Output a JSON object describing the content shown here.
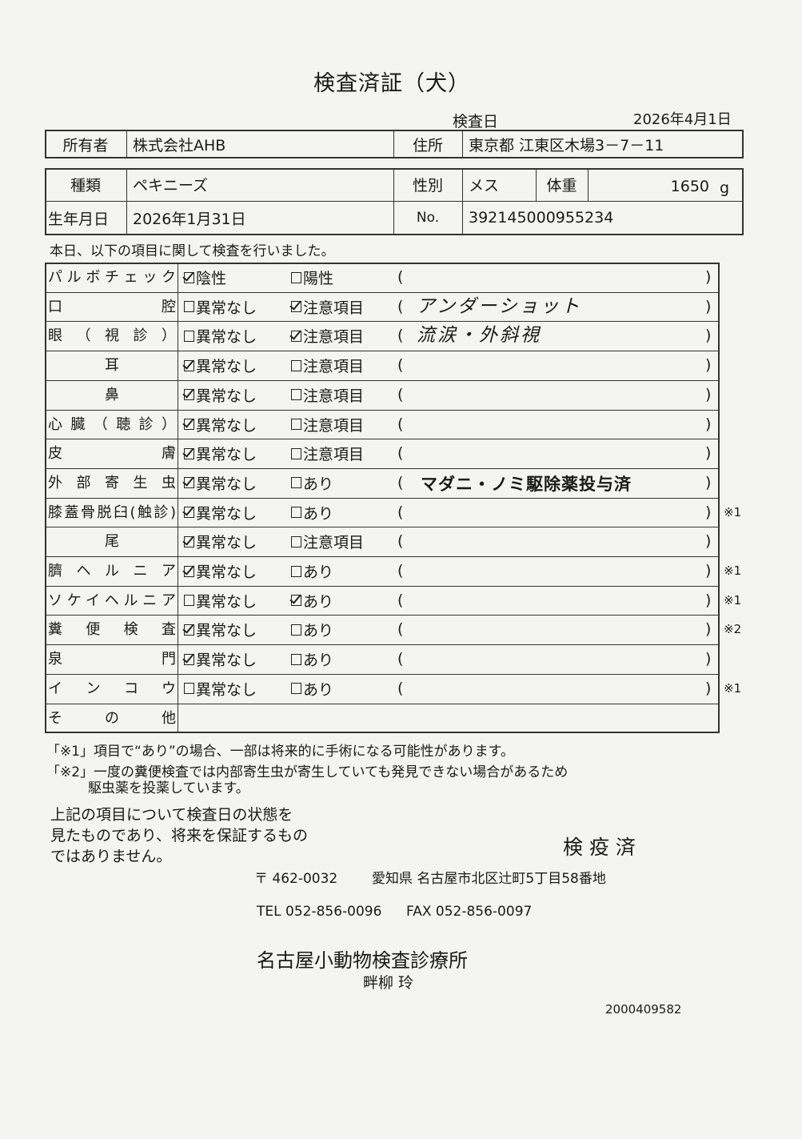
{
  "title": "検査済証（犬）",
  "exam_date": {
    "label": "検査日",
    "value": "2026年4月1日"
  },
  "owner": {
    "label": "所有者",
    "value": "株式会社AHB"
  },
  "address": {
    "label": "住所",
    "value": "東京都 江東区木場3－7－11"
  },
  "breed": {
    "label": "種類",
    "value": "ペキニーズ"
  },
  "sex": {
    "label": "性別",
    "value": "メス"
  },
  "weight": {
    "label": "体重",
    "value": "1650",
    "unit": "g"
  },
  "birth": {
    "label": "生年月日",
    "value": "2026年1月31日"
  },
  "number": {
    "label": "No.",
    "value": "392145000955234"
  },
  "intro": "本日、以下の項目に関して検査を行いました。",
  "items": [
    {
      "label": "パルボチェック",
      "opt1": "陰性",
      "opt1_checked": true,
      "opt2": "陽性",
      "opt2_checked": false,
      "note": "",
      "mark": ""
    },
    {
      "label": "口腔",
      "opt1": "異常なし",
      "opt1_checked": false,
      "opt2": "注意項目",
      "opt2_checked": true,
      "note": "アンダーショット",
      "mark": ""
    },
    {
      "label": "眼（視診）",
      "opt1": "異常なし",
      "opt1_checked": false,
      "opt2": "注意項目",
      "opt2_checked": true,
      "note": "流涙・外斜視",
      "mark": ""
    },
    {
      "label": "耳",
      "opt1": "異常なし",
      "opt1_checked": true,
      "opt2": "注意項目",
      "opt2_checked": false,
      "note": "",
      "mark": ""
    },
    {
      "label": "鼻",
      "opt1": "異常なし",
      "opt1_checked": true,
      "opt2": "注意項目",
      "opt2_checked": false,
      "note": "",
      "mark": ""
    },
    {
      "label": "心臓（聴診）",
      "opt1": "異常なし",
      "opt1_checked": true,
      "opt2": "注意項目",
      "opt2_checked": false,
      "note": "",
      "mark": ""
    },
    {
      "label": "皮膚",
      "opt1": "異常なし",
      "opt1_checked": true,
      "opt2": "注意項目",
      "opt2_checked": false,
      "note": "",
      "mark": ""
    },
    {
      "label": "外部寄生虫",
      "opt1": "異常なし",
      "opt1_checked": true,
      "opt2": "あり",
      "opt2_checked": false,
      "note": "マダニ・ノミ駆除薬投与済",
      "note_stamp": true,
      "mark": ""
    },
    {
      "label": "膝蓋骨脱臼(触診)",
      "opt1": "異常なし",
      "opt1_checked": true,
      "opt2": "あり",
      "opt2_checked": false,
      "note": "",
      "mark": "※1"
    },
    {
      "label": "尾",
      "opt1": "異常なし",
      "opt1_checked": true,
      "opt2": "注意項目",
      "opt2_checked": false,
      "note": "",
      "mark": ""
    },
    {
      "label": "臍ヘルニア",
      "opt1": "異常なし",
      "opt1_checked": true,
      "opt2": "あり",
      "opt2_checked": false,
      "note": "",
      "mark": "※1"
    },
    {
      "label": "ソケイヘルニア",
      "opt1": "異常なし",
      "opt1_checked": false,
      "opt2": "あり",
      "opt2_checked": true,
      "note": "",
      "mark": "※1"
    },
    {
      "label": "糞便検査",
      "opt1": "異常なし",
      "opt1_checked": true,
      "opt2": "あり",
      "opt2_checked": false,
      "note": "",
      "mark": "※2"
    },
    {
      "label": "泉門",
      "opt1": "異常なし",
      "opt1_checked": true,
      "opt2": "あり",
      "opt2_checked": false,
      "note": "",
      "mark": ""
    },
    {
      "label": "インコウ",
      "opt1": "異常なし",
      "opt1_checked": false,
      "opt2": "あり",
      "opt2_checked": false,
      "note": "",
      "mark": "※1"
    }
  ],
  "other_label": "その他",
  "footnote1": "「※1」項目で“あり”の場合、一部は将来的に手術になる可能性があります。",
  "footnote2_line1": "「※2」一度の糞便検査では内部寄生虫が寄生していても発見できない場合があるため",
  "footnote2_line2": "駆虫薬を投薬しています。",
  "disclaimer": [
    "上記の項目について検査日の状態を",
    "見たものであり、将来を保証するもの",
    "ではありません。"
  ],
  "stamp": "検 疫 済",
  "postal": "〒 462-0032",
  "clinic_address": "愛知県 名古屋市北区辻町5丁目58番地",
  "tel": "TEL 052-856-0096",
  "fax": "FAX 052-856-0097",
  "clinic_name": "名古屋小動物検査診療所",
  "doctor": "畔柳 玲",
  "doc_id": "2000409582"
}
